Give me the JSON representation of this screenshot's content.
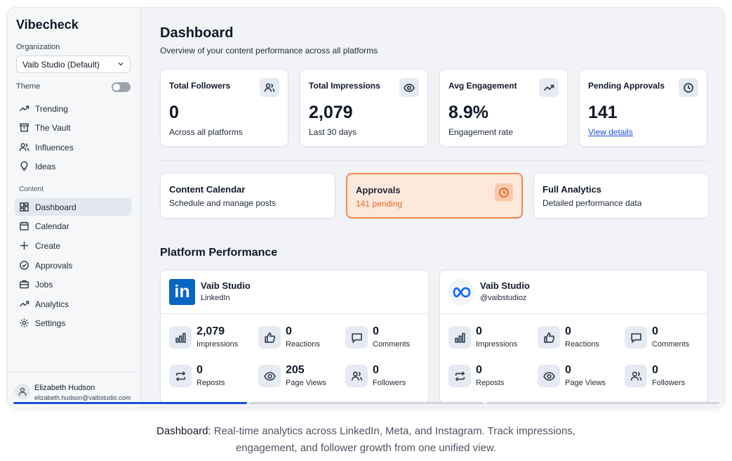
{
  "app": {
    "brand": "Vibecheck",
    "organization_label": "Organization",
    "organization_value": "Vaib Studio (Default)",
    "theme_label": "Theme"
  },
  "sidebar": {
    "top_items": [
      {
        "label": "Trending",
        "icon": "trending-icon"
      },
      {
        "label": "The Vault",
        "icon": "archive-icon"
      },
      {
        "label": "Influences",
        "icon": "users-icon"
      },
      {
        "label": "Ideas",
        "icon": "lightbulb-icon"
      }
    ],
    "content_label": "Content",
    "content_items": [
      {
        "label": "Dashboard",
        "icon": "dashboard-icon",
        "active": true
      },
      {
        "label": "Calendar",
        "icon": "calendar-icon"
      },
      {
        "label": "Create",
        "icon": "plus-icon"
      },
      {
        "label": "Approvals",
        "icon": "check-circle-icon"
      },
      {
        "label": "Jobs",
        "icon": "briefcase-icon"
      },
      {
        "label": "Analytics",
        "icon": "trending-icon"
      },
      {
        "label": "Settings",
        "icon": "gear-icon"
      }
    ],
    "user": {
      "name": "Elizabeth Hudson",
      "email": "elizabeth.hudson@vaibstudio.com"
    }
  },
  "header": {
    "title": "Dashboard",
    "subtitle": "Overview of your content performance across all platforms"
  },
  "stats": [
    {
      "title": "Total Followers",
      "value": "0",
      "note": "Across all platforms",
      "icon": "users-icon"
    },
    {
      "title": "Total Impressions",
      "value": "2,079",
      "note": "Last 30 days",
      "icon": "eye-icon"
    },
    {
      "title": "Avg Engagement",
      "value": "8.9%",
      "note": "Engagement rate",
      "icon": "trending-icon"
    },
    {
      "title": "Pending Approvals",
      "value": "141",
      "note": "View details",
      "icon": "clock-icon"
    }
  ],
  "quick_links": [
    {
      "title": "Content Calendar",
      "subtitle": "Schedule and manage posts"
    },
    {
      "title": "Approvals",
      "subtitle": "141 pending",
      "icon": "clock-icon"
    },
    {
      "title": "Full Analytics",
      "subtitle": "Detailed performance data"
    }
  ],
  "platform_section_title": "Platform Performance",
  "platforms": [
    {
      "name": "Vaib Studio",
      "handle": "LinkedIn",
      "logo": "linkedin-logo",
      "logo_text": "in",
      "metrics": [
        {
          "value": "2,079",
          "label": "Impressions",
          "icon": "bar-chart-icon"
        },
        {
          "value": "0",
          "label": "Reactions",
          "icon": "thumbs-up-icon"
        },
        {
          "value": "0",
          "label": "Comments",
          "icon": "comment-icon"
        },
        {
          "value": "0",
          "label": "Reposts",
          "icon": "repost-icon"
        },
        {
          "value": "205",
          "label": "Page Views",
          "icon": "eye-icon"
        },
        {
          "value": "0",
          "label": "Followers",
          "icon": "users-icon"
        }
      ]
    },
    {
      "name": "Vaib Studio",
      "handle": "@vaibstudioz",
      "logo": "meta-logo",
      "metrics": [
        {
          "value": "0",
          "label": "Impressions",
          "icon": "bar-chart-icon"
        },
        {
          "value": "0",
          "label": "Reactions",
          "icon": "thumbs-up-icon"
        },
        {
          "value": "0",
          "label": "Comments",
          "icon": "comment-icon"
        },
        {
          "value": "0",
          "label": "Reposts",
          "icon": "repost-icon"
        },
        {
          "value": "0",
          "label": "Page Views",
          "icon": "eye-icon"
        },
        {
          "value": "0",
          "label": "Followers",
          "icon": "users-icon"
        }
      ]
    }
  ],
  "caption": {
    "bold": "Dashboard:",
    "line1": " Real-time analytics across LinkedIn, Meta, and Instagram. Track impressions,",
    "line2": "engagement, and follower growth from one unified view."
  },
  "colors": {
    "accent": "#1d4ed8",
    "approvals_bg": "#fde8dc",
    "approvals_border": "#f5894f",
    "linkedin": "#0a66c2"
  }
}
